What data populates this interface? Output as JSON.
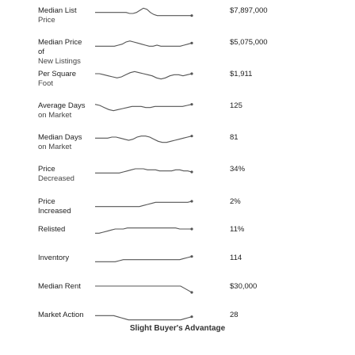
{
  "rows": [
    {
      "label": "Median List",
      "label2": "Price",
      "value": "$7,897,000",
      "points": [
        5,
        5,
        5,
        5,
        5,
        5,
        5,
        5,
        5,
        5,
        6,
        6,
        5,
        3,
        1,
        2,
        5,
        7,
        8,
        8,
        8,
        8,
        8,
        8,
        8,
        8,
        8,
        8,
        8
      ]
    },
    {
      "label": "Median Price of",
      "label2": "New Listings",
      "value": "$5,075,000",
      "points": [
        7,
        7,
        7,
        7,
        7,
        7,
        6,
        5,
        3,
        2,
        3,
        4,
        5,
        6,
        7,
        7,
        6,
        7,
        7,
        7,
        7,
        7,
        7,
        6,
        5,
        4
      ]
    },
    {
      "label": "Per Square",
      "label2": "Foot",
      "value": "$1,911",
      "points": [
        3,
        3,
        4,
        5,
        6,
        7,
        6,
        4,
        2,
        1,
        2,
        3,
        4,
        5,
        7,
        8,
        7,
        5,
        4,
        4,
        5,
        4,
        3
      ]
    },
    {
      "label": "Average Days",
      "label2": "on Market",
      "value": "125",
      "points": [
        2,
        3,
        5,
        7,
        8,
        7,
        6,
        5,
        4,
        4,
        4,
        5,
        5,
        4,
        4,
        4,
        4,
        4,
        4,
        4,
        3,
        2
      ]
    },
    {
      "label": "Median Days",
      "label2": "on Market",
      "value": "81",
      "points": [
        4,
        4,
        4,
        4,
        3,
        3,
        4,
        5,
        6,
        5,
        3,
        2,
        2,
        3,
        5,
        7,
        8,
        8,
        7,
        6,
        5,
        4,
        3,
        2
      ]
    },
    {
      "label": "Price",
      "label2": "Decreased",
      "value": "34%",
      "points": [
        7,
        7,
        7,
        7,
        7,
        7,
        7,
        6,
        5,
        4,
        3,
        3,
        3,
        4,
        4,
        4,
        5,
        5,
        5,
        5,
        4,
        4,
        5,
        5,
        6
      ]
    },
    {
      "label": "Price Increased",
      "label2": "",
      "value": "2%",
      "points": [
        8,
        8,
        8,
        8,
        8,
        8,
        8,
        8,
        8,
        8,
        8,
        8,
        7,
        6,
        5,
        4,
        4,
        4,
        4,
        4,
        4,
        4,
        4,
        4,
        3
      ]
    },
    {
      "label": "Relisted",
      "label2": "",
      "value": "11%",
      "points": [
        7,
        7,
        6,
        5,
        4,
        3,
        3,
        3,
        2,
        2,
        2,
        2,
        2,
        2,
        2,
        2,
        2,
        2,
        2,
        2,
        2,
        3,
        3,
        3,
        3
      ]
    },
    {
      "label": "Inventory",
      "label2": "",
      "value": "114",
      "points": [
        7,
        7,
        7,
        7,
        7,
        7,
        6,
        5,
        5,
        5,
        5,
        5,
        5,
        5,
        5,
        5,
        5,
        5,
        5,
        5,
        5,
        5,
        4,
        3,
        2
      ]
    },
    {
      "label": "Median Rent",
      "label2": "",
      "value": "$30,000",
      "points": [
        3,
        3,
        3,
        3,
        3,
        3,
        3,
        3,
        3,
        3,
        3,
        3,
        3,
        3,
        3,
        3,
        3,
        3,
        3,
        3,
        3,
        3,
        3,
        3,
        5,
        7,
        9
      ]
    },
    {
      "label": "Market Action",
      "label2": "",
      "value": "28",
      "points": [
        4,
        4,
        4,
        4,
        4,
        4,
        5,
        6,
        7,
        8,
        8,
        8,
        8,
        8,
        8,
        8,
        8,
        8,
        8,
        8,
        8,
        8,
        8,
        8,
        7,
        6,
        5
      ]
    }
  ],
  "footer": "Slight Buyer's Advantage"
}
